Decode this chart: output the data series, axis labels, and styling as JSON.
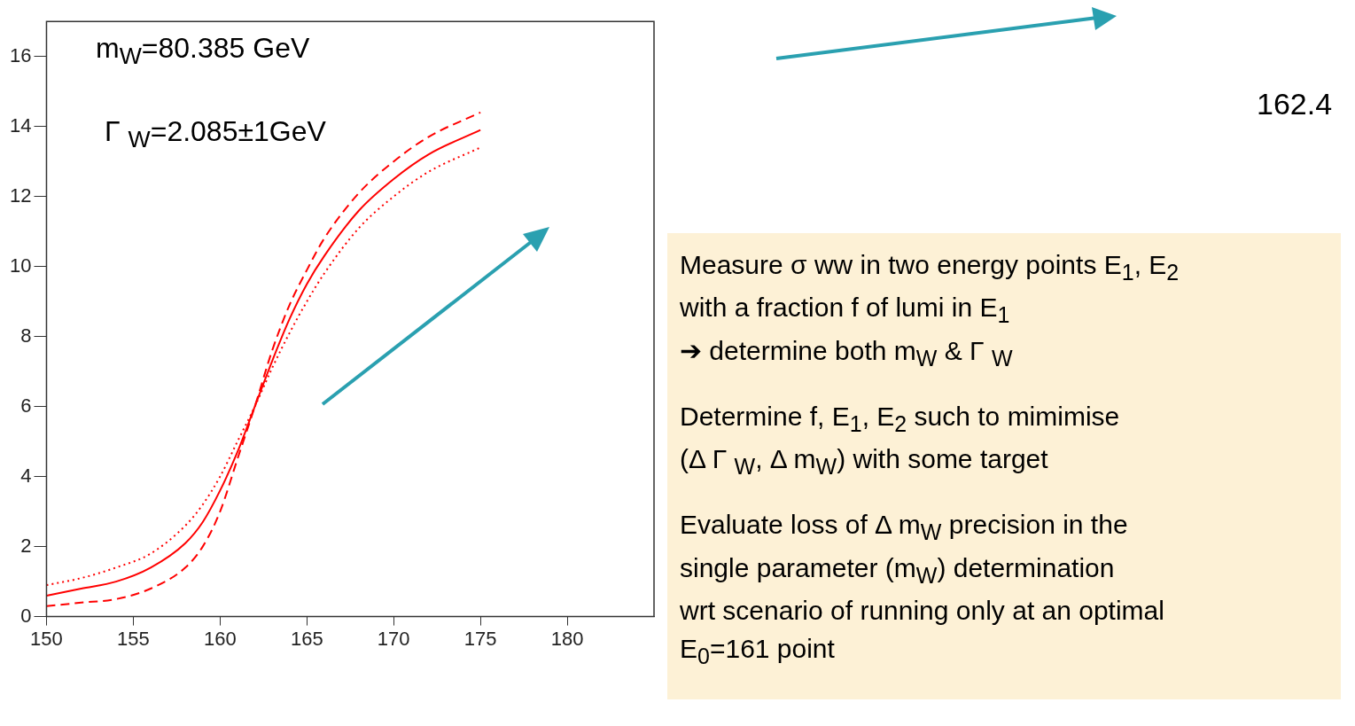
{
  "chart_data": {
    "type": "line",
    "annotations": [
      "m$_{W}$=80.385 GeV",
      "Γ $_{W}$=2.085±1GeV",
      "162.4",
      "Measure σ ww in two energy points E$_{1}$, E$_{2}$\nwith a fraction f of lumi in E$_{1}$\n➔ determine both m$_{W}$ & Γ $_{W}$",
      "Determine f, E$_{1}$, E$_{2}$ such to mimimise\n(Δ Γ $_{W}$, Δ m$_{W}$)   with some target",
      "Evaluate loss of Δ m$_{W}$ precision in the\nsingle parameter (m$_{W}$) determination\nwrt scenario of running only at an optimal\nE$_{0}$=161 point"
    ],
    "x": [
      150,
      152,
      154,
      156,
      158,
      159,
      160,
      161,
      162,
      163,
      164,
      165,
      166,
      168,
      170,
      172,
      175
    ],
    "series": [
      {
        "color": "#ff0000",
        "line_style": "solid",
        "values": [
          0.6,
          0.8,
          1.0,
          1.4,
          2.1,
          2.7,
          3.6,
          4.7,
          6.0,
          7.3,
          8.5,
          9.5,
          10.3,
          11.6,
          12.5,
          13.2,
          13.9
        ]
      },
      {
        "color": "#ff0000",
        "line_style": "dashed",
        "values": [
          0.3,
          0.4,
          0.5,
          0.8,
          1.4,
          2.0,
          3.0,
          4.5,
          6.0,
          7.6,
          8.9,
          9.9,
          10.8,
          12.1,
          13.0,
          13.7,
          14.4
        ]
      },
      {
        "color": "#ff0000",
        "line_style": "dotted",
        "values": [
          0.9,
          1.1,
          1.4,
          1.8,
          2.6,
          3.2,
          4.0,
          5.0,
          6.0,
          7.1,
          8.1,
          9.0,
          9.8,
          11.1,
          12.0,
          12.7,
          13.4
        ]
      }
    ],
    "xlim": [
      150,
      185
    ],
    "xticks": [
      150,
      155,
      160,
      165,
      170,
      175,
      180
    ],
    "ylim": [
      0,
      17
    ],
    "yticks": [
      0,
      2,
      4,
      6,
      8,
      10,
      12,
      14,
      16
    ],
    "grid": false,
    "legend": false,
    "marker": "none"
  }
}
